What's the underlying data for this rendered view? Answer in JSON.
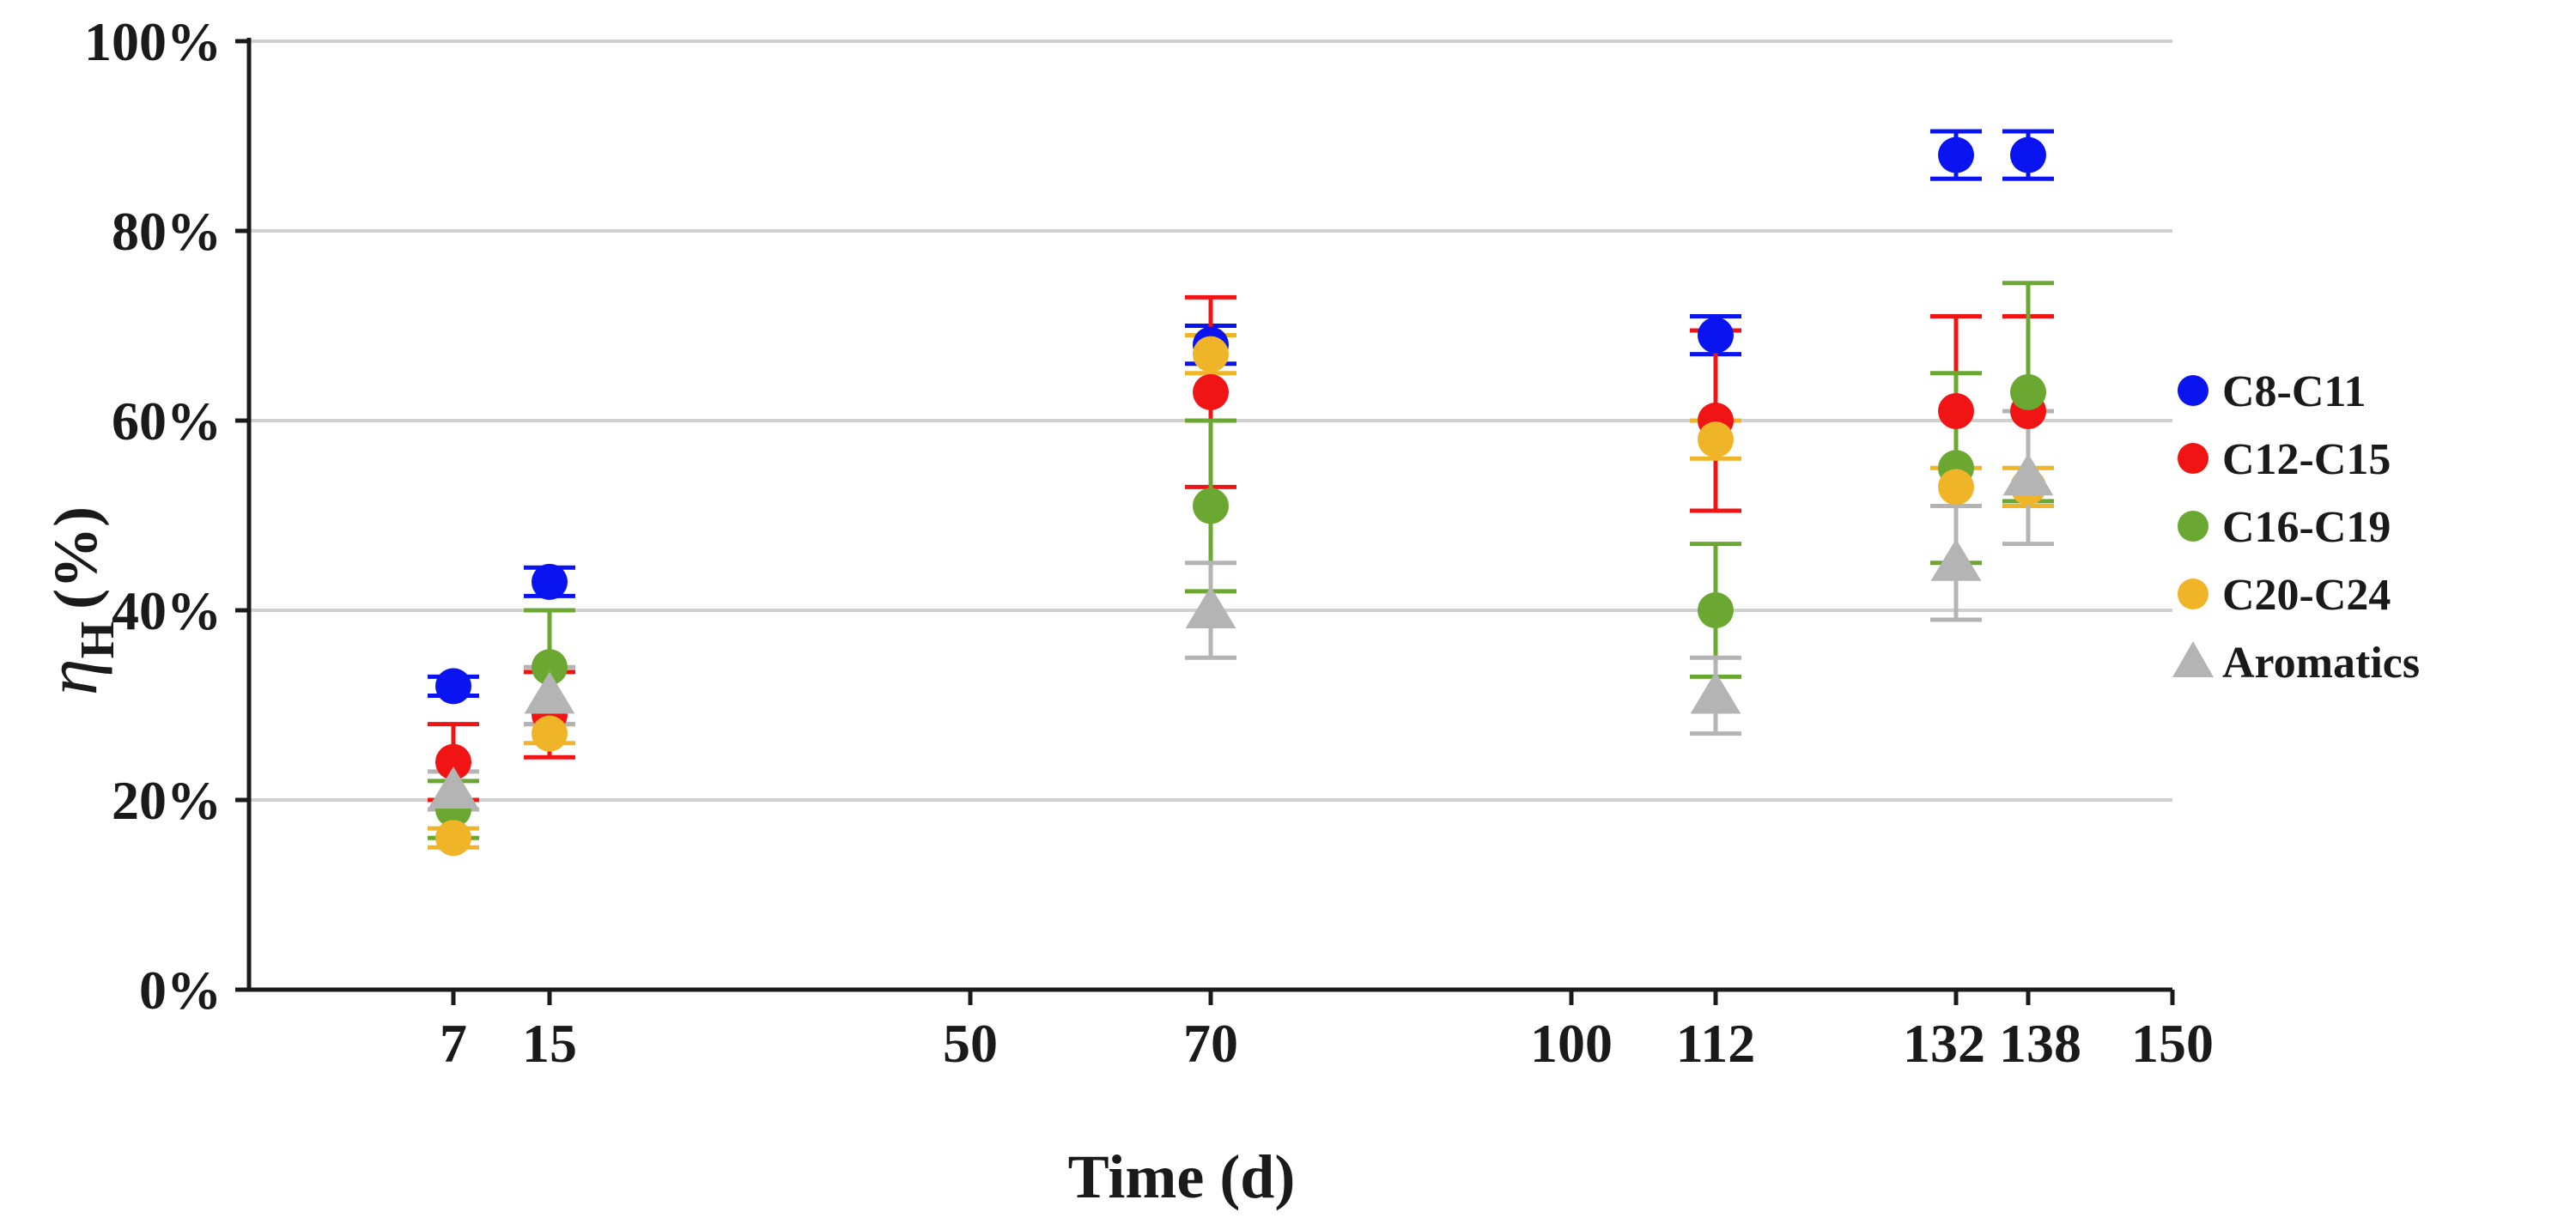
{
  "chart_data": {
    "type": "scatter",
    "title": "",
    "xlabel": "Time (d)",
    "ylabel_main": "η",
    "ylabel_sub": "H",
    "ylabel_unit": "(%)",
    "xlim": [
      -10,
      150
    ],
    "ylim": [
      0,
      100
    ],
    "x_ticks": [
      7,
      15,
      50,
      70,
      100,
      112,
      132,
      138,
      150
    ],
    "x_tick_labels": [
      "7",
      "15",
      "50",
      "70",
      "100",
      "112",
      "132",
      "138",
      "150"
    ],
    "y_ticks": [
      0,
      20,
      40,
      60,
      80,
      100
    ],
    "y_tick_labels": [
      "0%",
      "20%",
      "40%",
      "60%",
      "80%",
      "100%"
    ],
    "grid": true,
    "legend_position": "right",
    "series": [
      {
        "name": "C8-C11",
        "color": "#0a14f0",
        "marker": "circle",
        "points": [
          {
            "x": 7,
            "y": 32,
            "err": 1
          },
          {
            "x": 15,
            "y": 43,
            "err": 1.5
          },
          {
            "x": 70,
            "y": 68,
            "err": 2
          },
          {
            "x": 112,
            "y": 69,
            "err": 2
          },
          {
            "x": 132,
            "y": 88,
            "err": 2.5
          },
          {
            "x": 138,
            "y": 88,
            "err": 2.5
          }
        ]
      },
      {
        "name": "C12-C15",
        "color": "#f01414",
        "marker": "circle",
        "points": [
          {
            "x": 7,
            "y": 24,
            "err": 4
          },
          {
            "x": 15,
            "y": 29,
            "err": 4.5
          },
          {
            "x": 70,
            "y": 63,
            "err": 10
          },
          {
            "x": 112,
            "y": 60,
            "err": 9.5
          },
          {
            "x": 132,
            "y": 61,
            "err": 10
          },
          {
            "x": 138,
            "y": 61,
            "err": 10
          }
        ]
      },
      {
        "name": "C16-C19",
        "color": "#6aa832",
        "marker": "circle",
        "points": [
          {
            "x": 7,
            "y": 19,
            "err": 3
          },
          {
            "x": 15,
            "y": 34,
            "err": 6
          },
          {
            "x": 70,
            "y": 51,
            "err": 9
          },
          {
            "x": 112,
            "y": 40,
            "err": 7
          },
          {
            "x": 132,
            "y": 55,
            "err": 10
          },
          {
            "x": 138,
            "y": 63,
            "err": 11.5
          }
        ]
      },
      {
        "name": "C20-C24",
        "color": "#f0b428",
        "marker": "circle",
        "points": [
          {
            "x": 7,
            "y": 16,
            "err": 1
          },
          {
            "x": 15,
            "y": 27,
            "err": 1
          },
          {
            "x": 70,
            "y": 67,
            "err": 2
          },
          {
            "x": 112,
            "y": 58,
            "err": 2
          },
          {
            "x": 132,
            "y": 53,
            "err": 2
          },
          {
            "x": 138,
            "y": 53,
            "err": 2
          }
        ]
      },
      {
        "name": "Aromatics",
        "color": "#b4b4b4",
        "marker": "triangle",
        "points": [
          {
            "x": 7,
            "y": 21,
            "err": 2
          },
          {
            "x": 15,
            "y": 31,
            "err": 3
          },
          {
            "x": 70,
            "y": 40,
            "err": 5
          },
          {
            "x": 112,
            "y": 31,
            "err": 4
          },
          {
            "x": 132,
            "y": 45,
            "err": 6
          },
          {
            "x": 138,
            "y": 54,
            "err": 7
          }
        ]
      }
    ]
  }
}
